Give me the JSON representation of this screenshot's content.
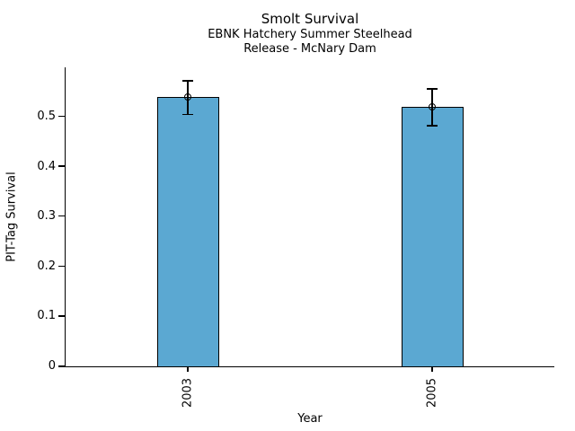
{
  "title": "Smolt Survival",
  "subtitle": [
    "EBNK Hatchery Summer Steelhead",
    "Release - McNary Dam"
  ],
  "chart_data": {
    "type": "bar",
    "title": "Smolt Survival",
    "subtitle": [
      "EBNK Hatchery Summer Steelhead",
      "Release - McNary Dam"
    ],
    "categories": [
      "2003",
      "2005"
    ],
    "values": [
      0.538,
      0.519
    ],
    "error_bars": [
      {
        "low": 0.504,
        "high": 0.571
      },
      {
        "low": 0.481,
        "high": 0.555
      }
    ],
    "xlabel": "Year",
    "ylabel": "PIT-Tag Survival",
    "yticks": [
      0,
      0.1,
      0.2,
      0.3,
      0.4,
      0.5
    ],
    "ytick_labels": [
      "0",
      "0.1",
      "0.2",
      "0.3",
      "0.4",
      "0.5"
    ],
    "ylim": [
      0,
      0.6
    ],
    "grid": false,
    "legend_position": "none",
    "bar_color": "#5BA8D2",
    "bar_edge_color": "#000000",
    "errorbar_color": "#000000",
    "marker": "open-circle"
  }
}
